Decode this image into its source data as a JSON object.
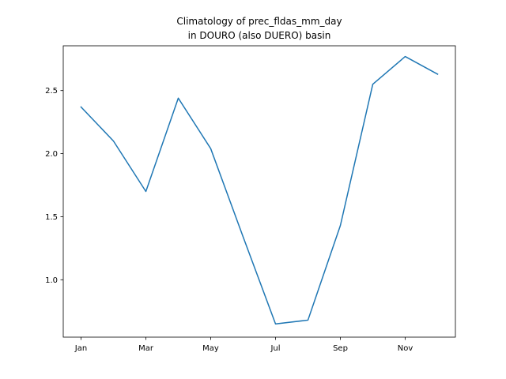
{
  "chart_data": {
    "type": "line",
    "title_line1": "Climatology of prec_fldas_mm_day",
    "title_line2": "in DOURO (also DUERO) basin",
    "xlabel": "",
    "ylabel": "",
    "x": [
      "Jan",
      "Feb",
      "Mar",
      "Apr",
      "May",
      "Jun",
      "Jul",
      "Aug",
      "Sep",
      "Oct",
      "Nov",
      "Dec"
    ],
    "x_tick_labels": [
      "Jan",
      "Mar",
      "May",
      "Jul",
      "Sep",
      "Nov"
    ],
    "y_tick_labels": [
      "1.0",
      "1.5",
      "2.0",
      "2.5"
    ],
    "y_ticks": [
      1.0,
      1.5,
      2.0,
      2.5
    ],
    "ylim": [
      0.545,
      2.855
    ],
    "series": [
      {
        "values": [
          2.37,
          2.1,
          1.7,
          2.44,
          2.04,
          1.34,
          0.65,
          0.68,
          1.43,
          2.55,
          2.77,
          2.63
        ],
        "color": "#1f77b4"
      }
    ],
    "grid": false,
    "legend": "none"
  }
}
